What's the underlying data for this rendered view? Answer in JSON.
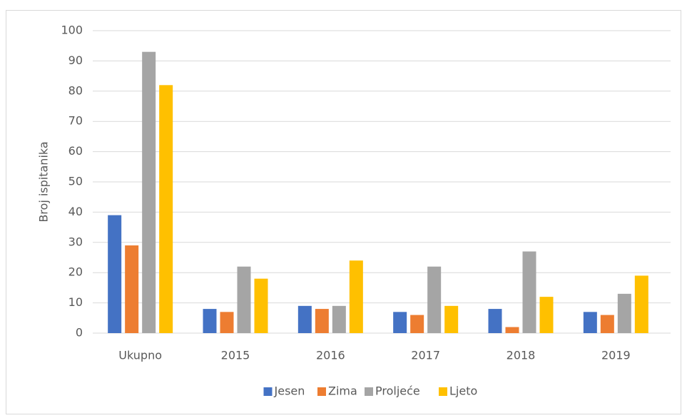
{
  "chart_data": {
    "type": "bar",
    "y_label": "Broj ispitanika",
    "categories": [
      "Ukupno",
      "2015",
      "2016",
      "2017",
      "2018",
      "2019"
    ],
    "series": [
      {
        "name": "Jesen",
        "color": "#4472c4",
        "values": [
          39,
          8,
          9,
          7,
          8,
          7
        ]
      },
      {
        "name": "Zima",
        "color": "#ed7d31",
        "values": [
          29,
          7,
          8,
          6,
          2,
          6
        ]
      },
      {
        "name": "Proljeće",
        "color": "#a5a5a5",
        "values": [
          93,
          22,
          9,
          22,
          27,
          13
        ]
      },
      {
        "name": "Ljeto",
        "color": "#ffc000",
        "values": [
          82,
          18,
          24,
          9,
          12,
          19
        ]
      }
    ],
    "ylim": [
      0,
      100
    ],
    "yticks": [
      0,
      10,
      20,
      30,
      40,
      50,
      60,
      70,
      80,
      90,
      100
    ],
    "grid": true,
    "legend": "bottom"
  }
}
